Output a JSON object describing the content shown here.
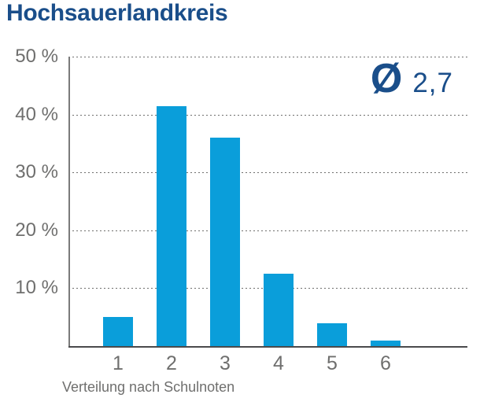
{
  "colors": {
    "bar": "#0a9eda",
    "navy": "#1a4e8a",
    "axis_text": "#6f6f6e",
    "gridline": "#6f6f6e",
    "baseline": "#4a4a4c",
    "y_axis_line": "#7a7a7a"
  },
  "chart_data": {
    "type": "bar",
    "title": "Hochsauerlandkreis",
    "categories": [
      "1",
      "2",
      "3",
      "4",
      "5",
      "6"
    ],
    "values": [
      5,
      41.5,
      36,
      12.5,
      4,
      1
    ],
    "unit": "%",
    "xlabel": "Verteilung nach Schulnoten",
    "ylabel": "",
    "ylim": [
      0,
      50
    ],
    "yticks": [
      {
        "value": 50,
        "label": "50 %"
      },
      {
        "value": 40,
        "label": "40 %"
      },
      {
        "value": 30,
        "label": "30 %"
      },
      {
        "value": 20,
        "label": "20 %"
      },
      {
        "value": 10,
        "label": "10 %"
      }
    ],
    "grid": "horizontal-dotted",
    "legend": "none",
    "average": {
      "symbol": "Ø",
      "value": "2,7"
    }
  }
}
